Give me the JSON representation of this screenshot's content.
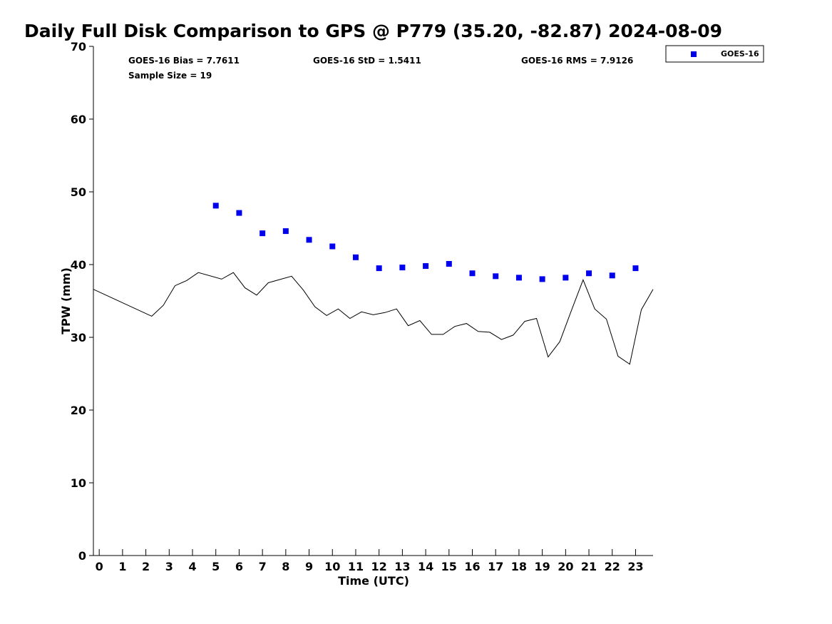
{
  "chart_data": {
    "type": "scatter",
    "title": "Daily Full Disk Comparison to GPS @ P779 (35.20, -82.87) 2024-08-09",
    "xlabel": "Time (UTC)",
    "ylabel": "TPW (mm)",
    "xlim": [
      -0.25,
      23.75
    ],
    "ylim": [
      0,
      70
    ],
    "x_ticks": [
      0,
      1,
      2,
      3,
      4,
      5,
      6,
      7,
      8,
      9,
      10,
      11,
      12,
      13,
      14,
      15,
      16,
      17,
      18,
      19,
      20,
      21,
      22,
      23
    ],
    "y_ticks": [
      0,
      10,
      20,
      30,
      40,
      50,
      60,
      70
    ],
    "grid": false,
    "legend_placement": "top-right, outside plot",
    "stats": {
      "bias": "GOES-16 Bias = 7.7611",
      "std": "GOES-16 StD = 1.5411",
      "rms": "GOES-16 RMS = 7.9126",
      "sample": "Sample Size = 19"
    },
    "series": [
      {
        "name": "GOES-16",
        "mark": "square",
        "color": "#0000ee",
        "x": [
          5,
          6,
          7,
          8,
          9,
          10,
          11,
          12,
          13,
          14,
          15,
          16,
          17,
          18,
          19,
          20,
          21,
          22,
          23
        ],
        "y": [
          48.1,
          47.1,
          44.3,
          44.6,
          43.4,
          42.5,
          41.0,
          39.5,
          39.6,
          39.8,
          40.1,
          38.8,
          38.4,
          38.2,
          38.0,
          38.2,
          38.8,
          38.5,
          39.5
        ]
      },
      {
        "mark": "line",
        "color": "#000000",
        "x": [
          -0.25,
          2.25,
          2.75,
          3.25,
          3.75,
          4.25,
          5.25,
          5.75,
          6.25,
          6.75,
          7.25,
          8.25,
          8.75,
          9.25,
          9.75,
          10.25,
          10.75,
          11.25,
          11.75,
          12.25,
          12.75,
          13.25,
          13.75,
          14.25,
          14.75,
          15.25,
          15.75,
          16.25,
          16.75,
          17.25,
          17.75,
          18.25,
          18.75,
          19.25,
          19.75,
          20.25,
          20.75,
          21.25,
          21.75,
          22.25,
          22.75,
          23.25,
          23.75
        ],
        "y": [
          36.6,
          32.9,
          34.4,
          37.1,
          37.8,
          38.9,
          38.0,
          38.9,
          36.8,
          35.8,
          37.5,
          38.4,
          36.5,
          34.2,
          33.0,
          33.9,
          32.6,
          33.5,
          33.1,
          33.4,
          33.9,
          31.6,
          32.3,
          30.4,
          30.4,
          31.5,
          31.9,
          30.8,
          30.7,
          29.7,
          30.3,
          32.2,
          32.6,
          27.3,
          29.4,
          33.7,
          37.9,
          33.9,
          32.5,
          27.4,
          26.3,
          33.8,
          36.6
        ]
      }
    ]
  }
}
